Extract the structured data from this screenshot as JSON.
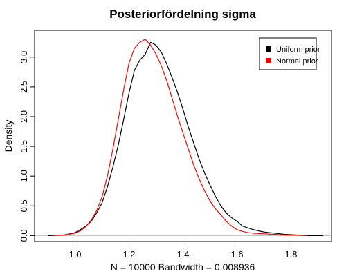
{
  "chart_data": {
    "type": "line",
    "title": "Posteriorfördelning sigma",
    "xlabel": "N = 10000   Bandwidth = 0.008936",
    "ylabel": "Density",
    "xlim": [
      0.85,
      1.95
    ],
    "ylim": [
      -0.1,
      3.45
    ],
    "x_ticks": [
      "1.0",
      "1.2",
      "1.4",
      "1.6",
      "1.8"
    ],
    "y_ticks": [
      "0.0",
      "0.5",
      "1.0",
      "1.5",
      "2.0",
      "2.5",
      "3.0"
    ],
    "zero_line": true,
    "legend_position": "top-right",
    "series": [
      {
        "name": "Uniform prior",
        "color": "#000000",
        "x": [
          0.9,
          0.96,
          1.0,
          1.02,
          1.04,
          1.06,
          1.08,
          1.1,
          1.12,
          1.14,
          1.16,
          1.18,
          1.2,
          1.22,
          1.24,
          1.26,
          1.28,
          1.3,
          1.32,
          1.34,
          1.36,
          1.38,
          1.4,
          1.42,
          1.44,
          1.46,
          1.48,
          1.5,
          1.52,
          1.54,
          1.56,
          1.58,
          1.6,
          1.62,
          1.64,
          1.66,
          1.68,
          1.7,
          1.74,
          1.78,
          1.82,
          1.86,
          1.92
        ],
        "y": [
          0.0,
          0.01,
          0.05,
          0.1,
          0.16,
          0.24,
          0.38,
          0.55,
          0.82,
          1.15,
          1.52,
          1.95,
          2.4,
          2.78,
          2.95,
          3.05,
          3.25,
          3.2,
          3.08,
          2.88,
          2.65,
          2.4,
          2.12,
          1.82,
          1.55,
          1.28,
          1.05,
          0.85,
          0.66,
          0.5,
          0.38,
          0.3,
          0.24,
          0.16,
          0.13,
          0.1,
          0.08,
          0.06,
          0.04,
          0.02,
          0.01,
          0.0,
          0.0
        ]
      },
      {
        "name": "Normal prior",
        "color": "#ff0000",
        "x": [
          0.92,
          0.96,
          1.0,
          1.02,
          1.04,
          1.06,
          1.08,
          1.1,
          1.12,
          1.14,
          1.16,
          1.18,
          1.2,
          1.22,
          1.24,
          1.26,
          1.28,
          1.3,
          1.32,
          1.34,
          1.36,
          1.38,
          1.4,
          1.42,
          1.44,
          1.46,
          1.48,
          1.5,
          1.52,
          1.54,
          1.56,
          1.58,
          1.6,
          1.62,
          1.64,
          1.66,
          1.7,
          1.74,
          1.78,
          1.82,
          1.86
        ],
        "y": [
          0.0,
          0.01,
          0.04,
          0.08,
          0.15,
          0.26,
          0.42,
          0.65,
          1.0,
          1.45,
          1.95,
          2.45,
          2.9,
          3.15,
          3.25,
          3.3,
          3.2,
          3.05,
          2.85,
          2.6,
          2.3,
          2.0,
          1.72,
          1.45,
          1.18,
          0.95,
          0.75,
          0.58,
          0.45,
          0.35,
          0.24,
          0.16,
          0.1,
          0.07,
          0.05,
          0.04,
          0.03,
          0.02,
          0.01,
          0.005,
          0.0
        ]
      }
    ]
  }
}
